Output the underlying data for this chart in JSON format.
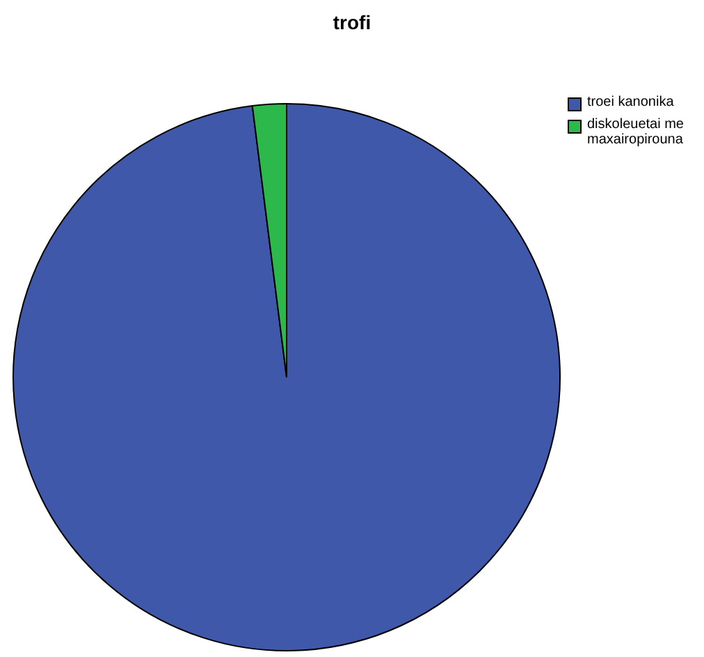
{
  "chart_data": {
    "type": "pie",
    "title": "trofi",
    "categories": [
      "troei kanonika",
      "diskoleuetai me maxairopirouna"
    ],
    "values": [
      98,
      2
    ],
    "colors": [
      "#3f58aa",
      "#2db84b"
    ],
    "legend": "top right"
  }
}
